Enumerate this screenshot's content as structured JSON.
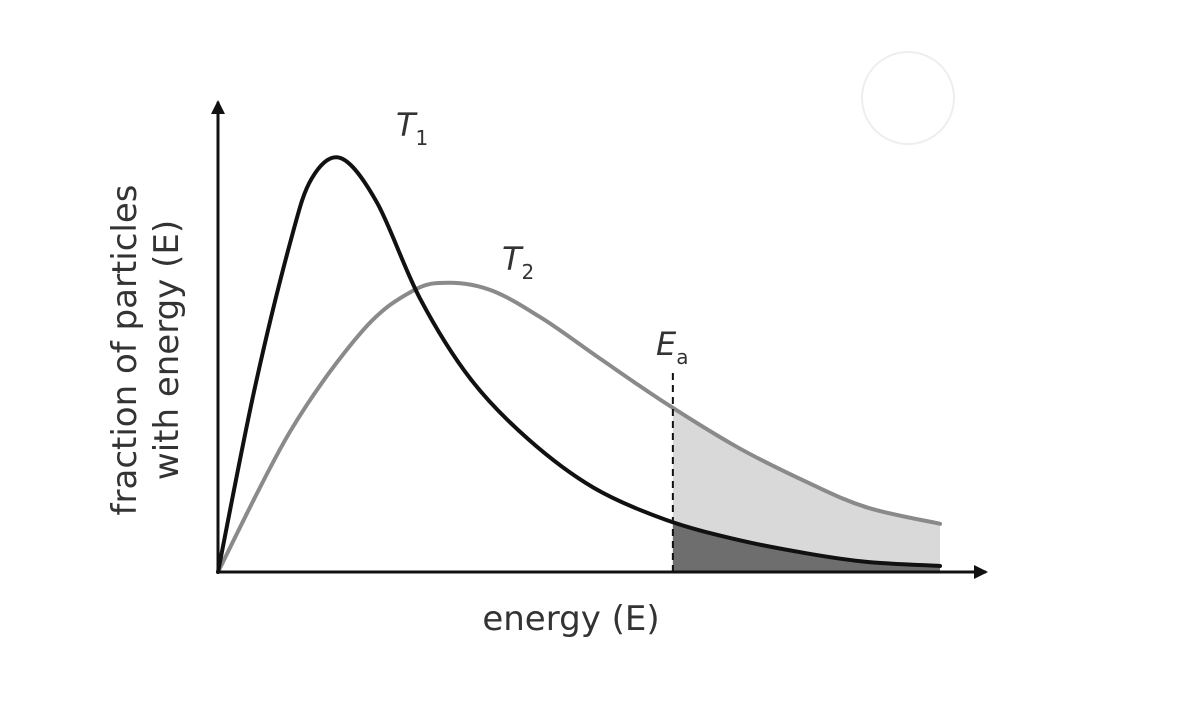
{
  "chart_data": {
    "type": "line",
    "xlabel": "energy (E)",
    "ylabel_line1": "fraction of particles",
    "ylabel_line2": "with energy (E)",
    "xlim": [
      0,
      10
    ],
    "ylim": [
      0,
      1.1
    ],
    "series": [
      {
        "name": "T1",
        "label_main": "T",
        "label_sub": "1",
        "color": "#111111",
        "x": [
          0,
          0.5,
          1.0,
          1.3,
          1.7,
          2.2,
          2.8,
          3.5,
          4.3,
          5.2,
          6.2,
          7.2,
          8.2,
          9.0,
          10.0
        ],
        "y": [
          0,
          0.45,
          0.82,
          0.98,
          1.03,
          0.92,
          0.68,
          0.48,
          0.33,
          0.21,
          0.13,
          0.08,
          0.045,
          0.025,
          0.015
        ]
      },
      {
        "name": "T2",
        "label_main": "T",
        "label_sub": "2",
        "color": "#8a8a8a",
        "x": [
          0,
          1.0,
          2.0,
          2.7,
          3.2,
          3.8,
          4.5,
          5.3,
          6.2,
          7.2,
          8.2,
          9.0,
          10.0
        ],
        "y": [
          0,
          0.35,
          0.6,
          0.7,
          0.72,
          0.7,
          0.63,
          0.53,
          0.42,
          0.31,
          0.22,
          0.16,
          0.12
        ]
      }
    ],
    "annotation": {
      "name": "Ea",
      "label_main": "E",
      "label_sub": "a",
      "x": 6.3
    },
    "colors": {
      "t1_area": "#6e6e6e",
      "t2_area": "#d9d9d9",
      "axis": "#111111"
    },
    "grid": false,
    "legend": "none"
  }
}
